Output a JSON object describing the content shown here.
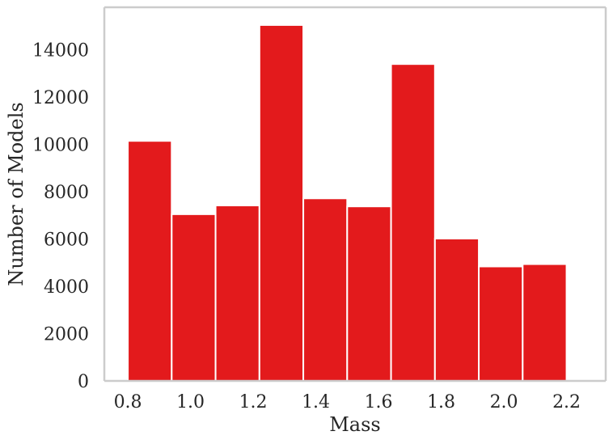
{
  "chart_data": {
    "type": "bar",
    "title": "",
    "xlabel": "Mass",
    "ylabel": "Number of Models",
    "bar_color": "#e31a1c",
    "frame_color": "#cccccc",
    "text_color": "#262626",
    "grid": false,
    "xlim": [
      0.725,
      2.325
    ],
    "ylim": [
      0,
      15800
    ],
    "x_ticks": [
      0.8,
      1.0,
      1.2,
      1.4,
      1.6,
      1.8,
      2.0,
      2.2
    ],
    "x_tick_labels": [
      "0.8",
      "1.0",
      "1.2",
      "1.4",
      "1.6",
      "1.8",
      "2.0",
      "2.2"
    ],
    "y_ticks": [
      0,
      2000,
      4000,
      6000,
      8000,
      10000,
      12000,
      14000
    ],
    "y_tick_labels": [
      "0",
      "2000",
      "4000",
      "6000",
      "8000",
      "10000",
      "12000",
      "14000"
    ],
    "bins": [
      {
        "start": 0.8,
        "end": 0.94,
        "value": 10150
      },
      {
        "start": 0.94,
        "end": 1.08,
        "value": 7050
      },
      {
        "start": 1.08,
        "end": 1.22,
        "value": 7420
      },
      {
        "start": 1.22,
        "end": 1.36,
        "value": 15050
      },
      {
        "start": 1.36,
        "end": 1.5,
        "value": 7720
      },
      {
        "start": 1.5,
        "end": 1.64,
        "value": 7380
      },
      {
        "start": 1.64,
        "end": 1.78,
        "value": 13400
      },
      {
        "start": 1.78,
        "end": 1.92,
        "value": 6020
      },
      {
        "start": 1.92,
        "end": 2.06,
        "value": 4840
      },
      {
        "start": 2.06,
        "end": 2.2,
        "value": 4940
      }
    ]
  }
}
